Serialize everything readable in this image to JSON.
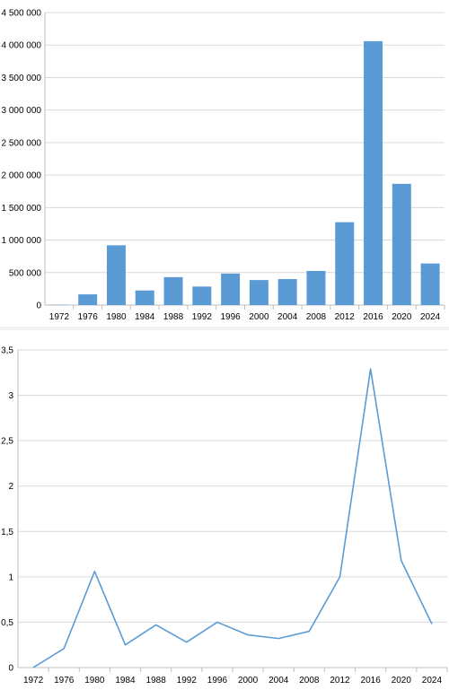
{
  "chart_data": [
    {
      "type": "bar",
      "title": "",
      "xlabel": "",
      "ylabel": "",
      "categories": [
        "1972",
        "1976",
        "1980",
        "1984",
        "1988",
        "1992",
        "1996",
        "2000",
        "2004",
        "2008",
        "2012",
        "2016",
        "2020",
        "2024"
      ],
      "values": [
        5000,
        165000,
        920000,
        225000,
        430000,
        285000,
        485000,
        385000,
        400000,
        525000,
        1275000,
        4060000,
        1865000,
        640000
      ],
      "ylim": [
        0,
        4500000
      ],
      "yticks": [
        0,
        500000,
        1000000,
        1500000,
        2000000,
        2500000,
        3000000,
        3500000,
        4000000,
        4500000
      ],
      "ytick_labels": [
        "0",
        "500 000",
        "1 000 000",
        "1 500 000",
        "2 000 000",
        "2 500 000",
        "3 000 000",
        "3 500 000",
        "4 000 000",
        "4 500 000"
      ],
      "grid": true,
      "color": "#5b9bd5"
    },
    {
      "type": "line",
      "title": "",
      "xlabel": "",
      "ylabel": "",
      "categories": [
        "1972",
        "1976",
        "1980",
        "1984",
        "1988",
        "1992",
        "1996",
        "2000",
        "2004",
        "2008",
        "2012",
        "2016",
        "2020",
        "2024"
      ],
      "values": [
        0.0,
        0.21,
        1.06,
        0.25,
        0.47,
        0.28,
        0.5,
        0.36,
        0.32,
        0.4,
        1.0,
        3.29,
        1.18,
        0.48
      ],
      "ylim": [
        0,
        3.5
      ],
      "yticks": [
        0,
        0.5,
        1,
        1.5,
        2,
        2.5,
        3,
        3.5
      ],
      "ytick_labels": [
        "0",
        "0,5",
        "1",
        "1,5",
        "2",
        "2,5",
        "3",
        "3,5"
      ],
      "grid": true,
      "color": "#5b9bd5"
    }
  ]
}
